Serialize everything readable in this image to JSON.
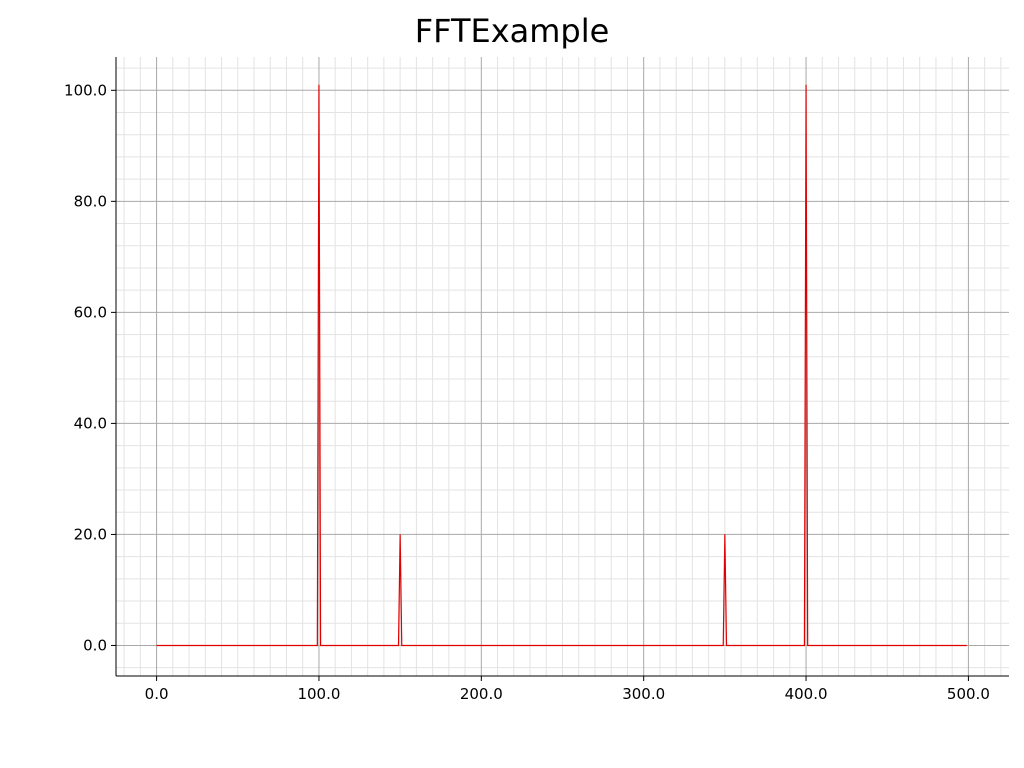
{
  "chart_data": {
    "type": "line",
    "title": "FFTExample",
    "xlabel": "",
    "ylabel": "",
    "xlim": [
      -25,
      525
    ],
    "ylim": [
      -5.5,
      106
    ],
    "x_ticks": [
      0,
      100,
      200,
      300,
      400,
      500
    ],
    "x_tick_labels": [
      "0.0",
      "100.0",
      "200.0",
      "300.0",
      "400.0",
      "500.0"
    ],
    "y_ticks": [
      0,
      20,
      40,
      60,
      80,
      100
    ],
    "y_tick_labels": [
      "0.0",
      "20.0",
      "40.0",
      "60.0",
      "80.0",
      "100.0"
    ],
    "grid": true,
    "minor_grid": true,
    "legend": "none",
    "series": [
      {
        "color": "#e00000",
        "x": [
          0,
          99,
          100,
          101,
          149,
          150,
          151,
          349,
          350,
          351,
          399,
          400,
          401,
          499
        ],
        "y": [
          0,
          0,
          101,
          0,
          0,
          20,
          0,
          0,
          20,
          0,
          0,
          101,
          0,
          0
        ]
      }
    ]
  }
}
